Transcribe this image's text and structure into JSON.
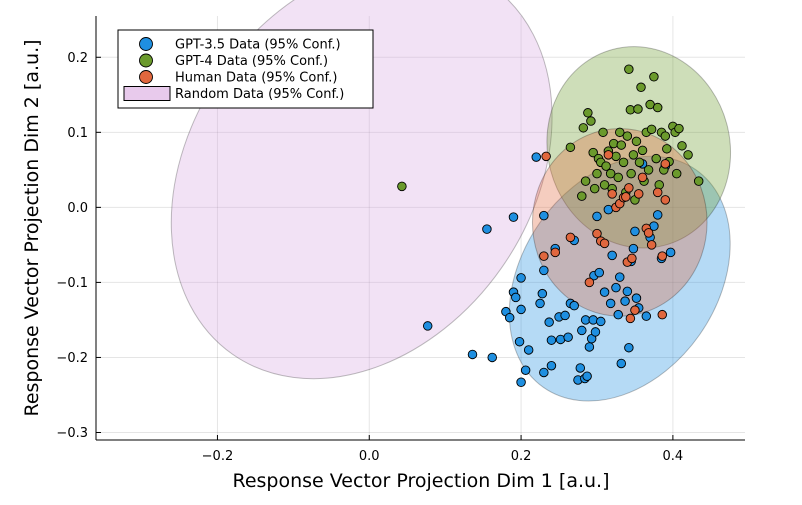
{
  "chart_data": {
    "type": "scatter",
    "xlabel": "Response Vector Projection Dim 1 [a.u.]",
    "ylabel": "Response Vector Projection Dim 2 [a.u.]",
    "xlim": [
      -0.36,
      0.495
    ],
    "ylim": [
      -0.31,
      0.255
    ],
    "xticks": [
      -0.2,
      0.0,
      0.2,
      0.4
    ],
    "xtick_labels": [
      "−0.2",
      "0.0",
      "0.2",
      "0.4"
    ],
    "yticks": [
      -0.3,
      -0.2,
      -0.1,
      0.0,
      0.1,
      0.2
    ],
    "ytick_labels": [
      "−0.3",
      "−0.2",
      "−0.1",
      "0.0",
      "0.1",
      "0.2"
    ],
    "grid": true,
    "legend_position": "top-left",
    "series": [
      {
        "name": "GPT-3.5 Data (95% Conf.)",
        "color": "#1f8fe0",
        "ellipse": {
          "cx": 0.33,
          "cy": -0.095,
          "rx": 0.175,
          "ry": 0.13,
          "angle_deg": 55
        },
        "points": [
          [
            0.077,
            -0.158
          ],
          [
            0.136,
            -0.196
          ],
          [
            0.155,
            -0.029
          ],
          [
            0.162,
            -0.2
          ],
          [
            0.18,
            -0.139
          ],
          [
            0.185,
            -0.147
          ],
          [
            0.19,
            -0.113
          ],
          [
            0.19,
            -0.013
          ],
          [
            0.193,
            -0.12
          ],
          [
            0.198,
            -0.179
          ],
          [
            0.2,
            -0.094
          ],
          [
            0.2,
            -0.233
          ],
          [
            0.2,
            -0.136
          ],
          [
            0.206,
            -0.217
          ],
          [
            0.21,
            -0.19
          ],
          [
            0.22,
            0.067
          ],
          [
            0.225,
            -0.128
          ],
          [
            0.228,
            -0.115
          ],
          [
            0.23,
            -0.084
          ],
          [
            0.23,
            -0.22
          ],
          [
            0.23,
            -0.011
          ],
          [
            0.237,
            -0.153
          ],
          [
            0.24,
            -0.177
          ],
          [
            0.24,
            -0.211
          ],
          [
            0.245,
            -0.055
          ],
          [
            0.25,
            -0.146
          ],
          [
            0.252,
            -0.176
          ],
          [
            0.258,
            -0.144
          ],
          [
            0.262,
            -0.173
          ],
          [
            0.265,
            -0.128
          ],
          [
            0.27,
            -0.131
          ],
          [
            0.27,
            -0.044
          ],
          [
            0.275,
            -0.23
          ],
          [
            0.278,
            -0.214
          ],
          [
            0.28,
            -0.164
          ],
          [
            0.284,
            -0.228
          ],
          [
            0.285,
            -0.15
          ],
          [
            0.287,
            -0.225
          ],
          [
            0.29,
            -0.186
          ],
          [
            0.293,
            -0.175
          ],
          [
            0.295,
            -0.15
          ],
          [
            0.296,
            -0.091
          ],
          [
            0.298,
            -0.166
          ],
          [
            0.3,
            -0.012
          ],
          [
            0.303,
            -0.087
          ],
          [
            0.305,
            -0.152
          ],
          [
            0.31,
            -0.113
          ],
          [
            0.315,
            -0.003
          ],
          [
            0.318,
            -0.128
          ],
          [
            0.32,
            -0.064
          ],
          [
            0.325,
            -0.107
          ],
          [
            0.328,
            -0.143
          ],
          [
            0.33,
            -0.093
          ],
          [
            0.332,
            -0.208
          ],
          [
            0.337,
            -0.125
          ],
          [
            0.34,
            -0.112
          ],
          [
            0.342,
            -0.187
          ],
          [
            0.345,
            -0.072
          ],
          [
            0.348,
            -0.055
          ],
          [
            0.35,
            -0.032
          ],
          [
            0.352,
            -0.121
          ],
          [
            0.355,
            -0.134
          ],
          [
            0.36,
            0.058
          ],
          [
            0.365,
            -0.145
          ],
          [
            0.37,
            -0.04
          ],
          [
            0.375,
            -0.025
          ],
          [
            0.38,
            -0.01
          ],
          [
            0.385,
            -0.068
          ],
          [
            0.39,
            0.055
          ],
          [
            0.397,
            -0.06
          ]
        ]
      },
      {
        "name": "GPT-4 Data (95% Conf.)",
        "color": "#6b9a2c",
        "ellipse": {
          "cx": 0.355,
          "cy": 0.08,
          "rx": 0.12,
          "ry": 0.135,
          "angle_deg": 15
        },
        "points": [
          [
            0.043,
            0.028
          ],
          [
            0.265,
            0.08
          ],
          [
            0.28,
            0.015
          ],
          [
            0.282,
            0.106
          ],
          [
            0.285,
            0.035
          ],
          [
            0.288,
            0.126
          ],
          [
            0.292,
            0.115
          ],
          [
            0.295,
            0.073
          ],
          [
            0.297,
            0.025
          ],
          [
            0.3,
            0.045
          ],
          [
            0.302,
            0.065
          ],
          [
            0.305,
            0.06
          ],
          [
            0.308,
            0.1
          ],
          [
            0.31,
            0.03
          ],
          [
            0.312,
            0.055
          ],
          [
            0.315,
            0.075
          ],
          [
            0.318,
            0.045
          ],
          [
            0.32,
            0.025
          ],
          [
            0.322,
            0.085
          ],
          [
            0.325,
            0.068
          ],
          [
            0.328,
            0.04
          ],
          [
            0.33,
            0.1
          ],
          [
            0.332,
            0.083
          ],
          [
            0.335,
            0.06
          ],
          [
            0.338,
            0.02
          ],
          [
            0.34,
            0.095
          ],
          [
            0.342,
            0.184
          ],
          [
            0.344,
            0.13
          ],
          [
            0.345,
            0.045
          ],
          [
            0.348,
            0.07
          ],
          [
            0.35,
            0.01
          ],
          [
            0.352,
            0.088
          ],
          [
            0.354,
            0.131
          ],
          [
            0.356,
            0.06
          ],
          [
            0.358,
            0.16
          ],
          [
            0.36,
            0.076
          ],
          [
            0.362,
            0.035
          ],
          [
            0.365,
            0.1
          ],
          [
            0.368,
            0.05
          ],
          [
            0.37,
            0.137
          ],
          [
            0.372,
            0.104
          ],
          [
            0.375,
            0.174
          ],
          [
            0.378,
            0.065
          ],
          [
            0.38,
            0.133
          ],
          [
            0.382,
            0.03
          ],
          [
            0.385,
            0.1
          ],
          [
            0.388,
            0.05
          ],
          [
            0.39,
            0.095
          ],
          [
            0.392,
            0.078
          ],
          [
            0.395,
            0.061
          ],
          [
            0.4,
            0.108
          ],
          [
            0.403,
            0.1
          ],
          [
            0.405,
            0.045
          ],
          [
            0.408,
            0.105
          ],
          [
            0.412,
            0.082
          ],
          [
            0.42,
            0.07
          ],
          [
            0.434,
            0.035
          ]
        ]
      },
      {
        "name": "Human Data (95% Conf.)",
        "color": "#e0673e",
        "ellipse": {
          "cx": 0.33,
          "cy": -0.02,
          "rx": 0.115,
          "ry": 0.125,
          "angle_deg": 0
        },
        "points": [
          [
            0.233,
            0.068
          ],
          [
            0.23,
            -0.065
          ],
          [
            0.245,
            -0.06
          ],
          [
            0.265,
            -0.04
          ],
          [
            0.29,
            -0.1
          ],
          [
            0.3,
            -0.035
          ],
          [
            0.305,
            -0.045
          ],
          [
            0.31,
            -0.048
          ],
          [
            0.315,
            0.07
          ],
          [
            0.32,
            0.018
          ],
          [
            0.325,
            0.0
          ],
          [
            0.33,
            0.005
          ],
          [
            0.335,
            0.013
          ],
          [
            0.338,
            0.014
          ],
          [
            0.34,
            -0.073
          ],
          [
            0.342,
            0.026
          ],
          [
            0.344,
            -0.148
          ],
          [
            0.346,
            -0.068
          ],
          [
            0.35,
            -0.137
          ],
          [
            0.355,
            0.018
          ],
          [
            0.36,
            0.04
          ],
          [
            0.365,
            -0.028
          ],
          [
            0.368,
            -0.034
          ],
          [
            0.372,
            -0.05
          ],
          [
            0.38,
            0.02
          ],
          [
            0.386,
            -0.143
          ],
          [
            0.39,
            0.058
          ],
          [
            0.39,
            0.01
          ],
          [
            0.386,
            -0.065
          ]
        ]
      },
      {
        "name": "Random Data (95% Conf.)",
        "color": "#d9a6e0",
        "ellipse": {
          "cx": -0.01,
          "cy": 0.05,
          "rx": 0.225,
          "ry": 0.3,
          "angle_deg": -35
        },
        "points": []
      }
    ]
  }
}
